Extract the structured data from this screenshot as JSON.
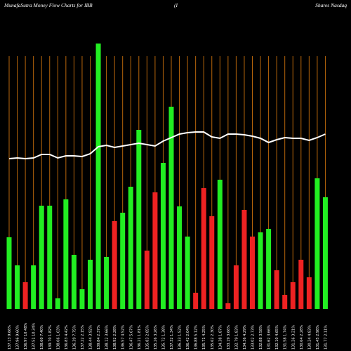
{
  "chart_data": {
    "type": "bar_line",
    "title": "MunafaSutra  Money Flow  Charts for IBB",
    "subtitle_mid": "(I",
    "subtitle_right": "Shares Nasdaq",
    "categories": [
      "137.13 9.66%",
      "137.96 9.60%",
      "136.97 10.48%",
      "137.51 10.34%",
      "138.60 7.40%",
      "139.70 1.82%",
      "138.06 1.03%",
      "136.83 4.42%",
      "136.39 7.75%",
      "137.22 2.15%",
      "138.44 3.92%",
      "139.84 2.37%",
      "138.12 3.66%",
      "138.92 2.28%",
      "136.57 4.52%",
      "136.47 5.67%",
      "136.21 1.81%",
      "135.83 2.85%",
      "135.26 3.26%",
      "135.72 1.38%",
      "137.32 1.34%",
      "136.33 1.52%",
      "136.42 2.04%",
      "136.88 5.12%",
      "135.71 4.25%",
      "135.62 2.30%",
      "134.38 1.87%",
      "133.19 3.66%",
      "132.79 1.83%",
      "134.36 4.29%",
      "133.02 2.73%",
      "132.88 3.58%",
      "131.62 3.66%",
      "132.10 4.65%",
      "131.58 1.74%",
      "131.26 3.21%",
      "130.64 2.28%",
      "130.24 4.83%",
      "131.45 2.98%",
      "131.77 2.11%"
    ],
    "series": [
      {
        "name": "Money Flow",
        "values": [
          102,
          62,
          38,
          62,
          147,
          147,
          15,
          156,
          77,
          28,
          70,
          378,
          74,
          125,
          137,
          174,
          255,
          83,
          166,
          208,
          288,
          146,
          103,
          23,
          172,
          132,
          184,
          8,
          62,
          141,
          103,
          109,
          114,
          55,
          20,
          38,
          70,
          45,
          186,
          159
        ],
        "colors": [
          "#22ee22",
          "#22ee22",
          "#ee2222",
          "#22ee22",
          "#22ee22",
          "#22ee22",
          "#22ee22",
          "#22ee22",
          "#22ee22",
          "#22ee22",
          "#22ee22",
          "#22ee22",
          "#22ee22",
          "#ee2222",
          "#22ee22",
          "#22ee22",
          "#22ee22",
          "#ee2222",
          "#ee2222",
          "#22ee22",
          "#22ee22",
          "#22ee22",
          "#22ee22",
          "#ee2222",
          "#ee2222",
          "#ee2222",
          "#22ee22",
          "#ee2222",
          "#ee2222",
          "#ee2222",
          "#ee2222",
          "#22ee22",
          "#22ee22",
          "#ee2222",
          "#ee2222",
          "#ee2222",
          "#ee2222",
          "#ee2222",
          "#22ee22",
          "#22ee22"
        ]
      },
      {
        "name": "Price",
        "color": "#ffffff",
        "values": [
          214,
          215,
          214,
          215,
          220,
          220,
          215,
          218,
          218,
          217,
          221,
          231,
          233,
          230,
          232,
          234,
          236,
          234,
          232,
          239,
          244,
          249,
          251,
          252,
          252,
          245,
          243,
          249,
          249,
          248,
          246,
          243,
          237,
          241,
          244,
          243,
          243,
          240,
          244,
          249
        ]
      }
    ],
    "ylim": [
      0,
      440
    ],
    "grid": true,
    "grid_color": "#b8660b"
  }
}
